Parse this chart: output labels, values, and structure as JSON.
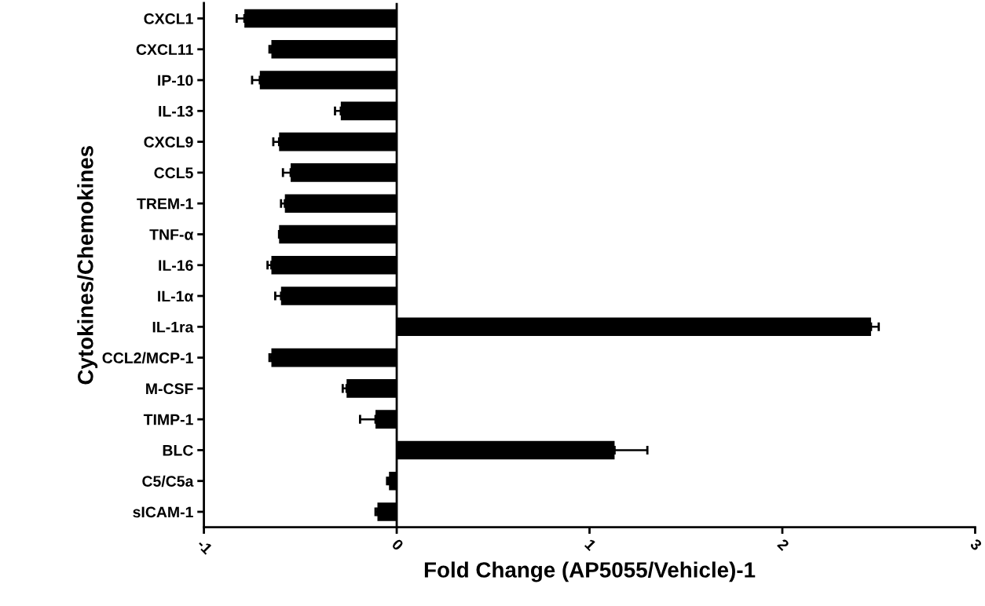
{
  "chart_data": {
    "type": "bar",
    "orientation": "horizontal",
    "categories": [
      "CXCL1",
      "CXCL11",
      "IP-10",
      "IL-13",
      "CXCL9",
      "CCL5",
      "TREM-1",
      "TNF-α",
      "IL-16",
      "IL-1α",
      "IL-1ra",
      "CCL2/MCP-1",
      "M-CSF",
      "TIMP-1",
      "BLC",
      "C5/C5a",
      "sICAM-1"
    ],
    "values": [
      -0.79,
      -0.65,
      -0.71,
      -0.29,
      -0.61,
      -0.55,
      -0.58,
      -0.61,
      -0.65,
      -0.6,
      2.46,
      -0.65,
      -0.26,
      -0.11,
      1.13,
      -0.04,
      -0.1
    ],
    "errors": [
      0.04,
      0.01,
      0.04,
      0.03,
      0.03,
      0.04,
      0.02,
      null,
      0.02,
      0.03,
      0.04,
      0.01,
      0.02,
      0.08,
      0.17,
      0.01,
      0.01
    ],
    "color": "#000000",
    "xlim": [
      -1,
      3
    ],
    "xticks": [
      -1,
      0,
      1,
      2,
      3
    ],
    "xlabel": "Fold Change (AP5055/Vehicle)-1",
    "ylabel": "Cytokines/Chemokines",
    "ref_lines": [
      {
        "axis": "x",
        "value": 0,
        "label": null,
        "color": "#000000"
      }
    ],
    "grid": false,
    "legend": false
  }
}
